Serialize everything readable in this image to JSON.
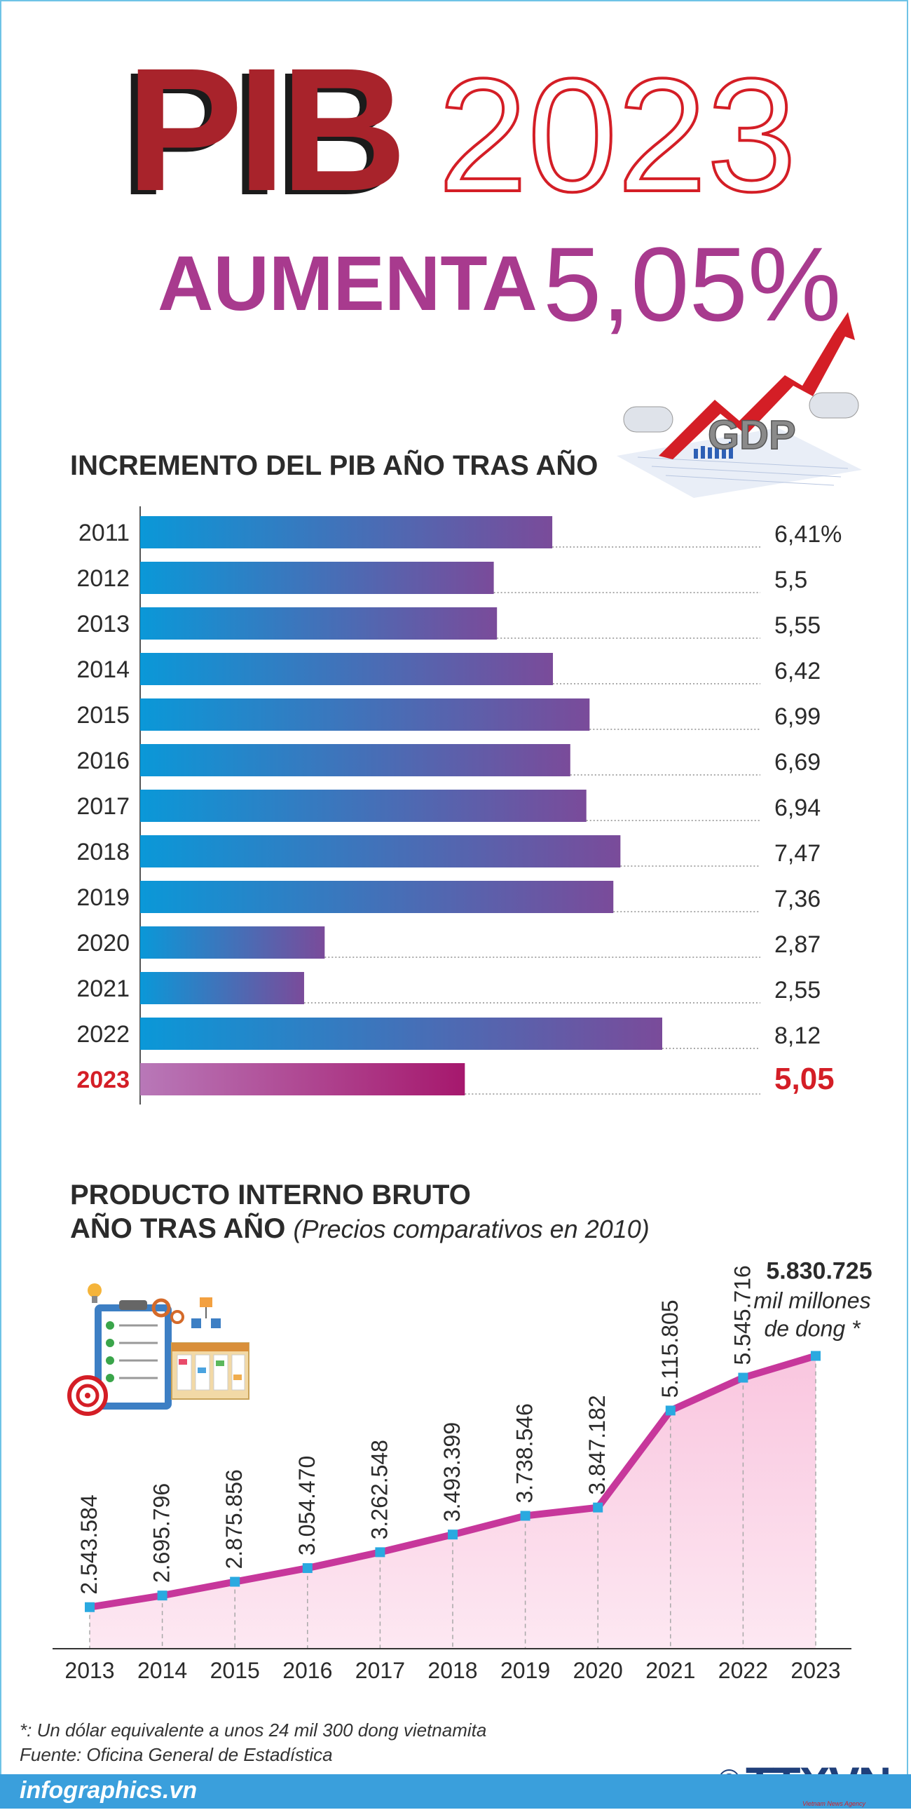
{
  "header": {
    "title_main": "PIB",
    "title_year": "2023",
    "subtitle_label": "AUMENTA",
    "subtitle_value": "5,05%",
    "badge_text": "GDP"
  },
  "sections": {
    "growth_title": "INCREMENTO DEL PIB AÑO TRAS AÑO",
    "gdp_title_line1": "PRODUCTO INTERNO BRUTO",
    "gdp_title_line2": "AÑO TRAS AÑO",
    "gdp_title_note": "(Precios comparativos en 2010)"
  },
  "chart_data": [
    {
      "type": "bar",
      "orientation": "horizontal",
      "title": "INCREMENTO DEL PIB AÑO TRAS AÑO",
      "categories": [
        "2011",
        "2012",
        "2013",
        "2014",
        "2015",
        "2016",
        "2017",
        "2018",
        "2019",
        "2020",
        "2021",
        "2022",
        "2023"
      ],
      "values": [
        6.41,
        5.5,
        5.55,
        6.42,
        6.99,
        6.69,
        6.94,
        7.47,
        7.36,
        2.87,
        2.55,
        8.12,
        5.05
      ],
      "value_labels": [
        "6,41%",
        "5,5",
        "5,55",
        "6,42",
        "6,99",
        "6,69",
        "6,94",
        "7,47",
        "7,36",
        "2,87",
        "2,55",
        "8,12",
        "5,05"
      ],
      "highlight_category": "2023",
      "xlim": [
        0,
        8.12
      ],
      "colors": {
        "bar_start": "#0a98d8",
        "bar_end": "#7a4b9a",
        "highlight_start": "#b878b8",
        "highlight_end": "#a6186d",
        "highlight_text": "#d41e26"
      }
    },
    {
      "type": "area",
      "title": "PRODUCTO INTERNO BRUTO AÑO TRAS AÑO",
      "x": [
        "2013",
        "2014",
        "2015",
        "2016",
        "2017",
        "2018",
        "2019",
        "2020",
        "2021",
        "2022",
        "2023"
      ],
      "values": [
        2543584,
        2695796,
        2875856,
        3054470,
        3262548,
        3493399,
        3738546,
        3847182,
        5115805,
        5545716,
        5830725
      ],
      "value_labels": [
        "2.543.584",
        "2.695.796",
        "2.875.856",
        "3.054.470",
        "3.262.548",
        "3.493.399",
        "3.738.546",
        "3.847.182",
        "5.115.805",
        "5.545.716",
        "5.830.725"
      ],
      "last_label_unit_line1": "mil millones",
      "last_label_unit_line2": "de dong *",
      "colors": {
        "line": "#c7379b",
        "fill_top": "#f9c6df",
        "fill_bottom": "#fde8f2",
        "marker": "#2aa9e0"
      }
    }
  ],
  "footer": {
    "note1": "*: Un dólar equivalente a unos 24 mil 300 dong vietnamita",
    "note2": "Fuente: Oficina General de Estadística",
    "site": "infographics.vn",
    "logo_symbol": "©",
    "logo_text": "TTXVN",
    "logo_subtext": "Vietnam News Agency"
  }
}
